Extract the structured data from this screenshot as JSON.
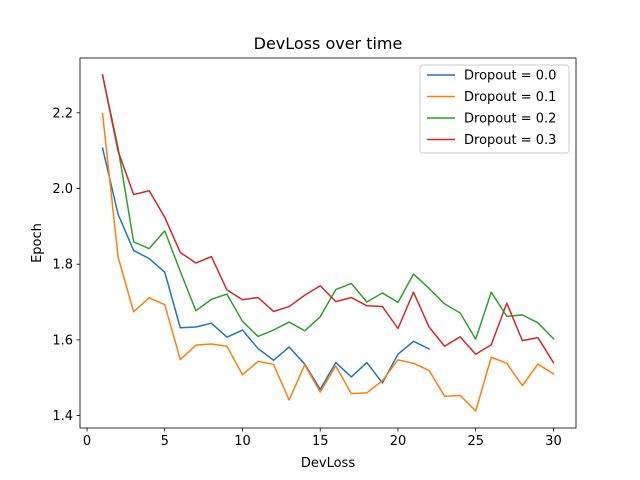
{
  "chart_data": {
    "type": "line",
    "title": "DevLoss over time",
    "xlabel": "DevLoss",
    "ylabel": "Epoch",
    "xlim": [
      -0.45,
      31.45
    ],
    "ylim": [
      1.367,
      2.345
    ],
    "xticks": [
      0,
      5,
      10,
      15,
      20,
      25,
      30
    ],
    "yticks": [
      1.4,
      1.6,
      1.8,
      2.0,
      2.2
    ],
    "xtick_labels": [
      "0",
      "5",
      "10",
      "15",
      "20",
      "25",
      "30"
    ],
    "ytick_labels": [
      "1.4",
      "1.6",
      "1.8",
      "2.0",
      "2.2"
    ],
    "grid": false,
    "legend_position": "top-right",
    "series": [
      {
        "name": "Dropout = 0.0",
        "color": "#1f77b4",
        "x": [
          1,
          2,
          3,
          4,
          5,
          6,
          7,
          8,
          9,
          10,
          11,
          12,
          13,
          14,
          15,
          16,
          17,
          18,
          19,
          20,
          21,
          22
        ],
        "y": [
          2.107,
          1.932,
          1.836,
          1.815,
          1.779,
          1.632,
          1.634,
          1.644,
          1.607,
          1.626,
          1.577,
          1.546,
          1.581,
          1.536,
          1.469,
          1.54,
          1.502,
          1.54,
          1.486,
          1.562,
          1.596,
          1.576
        ]
      },
      {
        "name": "Dropout = 0.1",
        "color": "#ff7f0e",
        "x": [
          1,
          2,
          3,
          4,
          5,
          6,
          7,
          8,
          9,
          10,
          11,
          12,
          13,
          14,
          15,
          16,
          17,
          18,
          19,
          20,
          21,
          22,
          23,
          24,
          25,
          26,
          27,
          28,
          29,
          30
        ],
        "y": [
          2.198,
          1.819,
          1.674,
          1.711,
          1.693,
          1.548,
          1.586,
          1.589,
          1.583,
          1.508,
          1.543,
          1.535,
          1.441,
          1.534,
          1.462,
          1.531,
          1.458,
          1.46,
          1.492,
          1.547,
          1.538,
          1.519,
          1.451,
          1.453,
          1.412,
          1.554,
          1.538,
          1.479,
          1.536,
          1.51
        ]
      },
      {
        "name": "Dropout = 0.2",
        "color": "#2ca02c",
        "x": [
          1,
          2,
          3,
          4,
          5,
          6,
          7,
          8,
          9,
          10,
          11,
          12,
          13,
          14,
          15,
          16,
          17,
          18,
          19,
          20,
          21,
          22,
          23,
          24,
          25,
          26,
          27,
          28,
          29,
          30
        ],
        "y": [
          2.3,
          2.107,
          1.859,
          1.841,
          1.888,
          1.781,
          1.677,
          1.707,
          1.721,
          1.649,
          1.609,
          1.626,
          1.647,
          1.624,
          1.661,
          1.733,
          1.749,
          1.7,
          1.724,
          1.699,
          1.774,
          1.736,
          1.695,
          1.671,
          1.602,
          1.726,
          1.662,
          1.666,
          1.645,
          1.603
        ]
      },
      {
        "name": "Dropout = 0.3",
        "color": "#d62728",
        "x": [
          1,
          2,
          3,
          4,
          5,
          6,
          7,
          8,
          9,
          10,
          11,
          12,
          13,
          14,
          15,
          16,
          17,
          18,
          19,
          20,
          21,
          22,
          23,
          24,
          25,
          26,
          27,
          28,
          29,
          30
        ],
        "y": [
          2.3,
          2.099,
          1.984,
          1.994,
          1.924,
          1.831,
          1.803,
          1.82,
          1.732,
          1.706,
          1.712,
          1.675,
          1.688,
          1.718,
          1.743,
          1.701,
          1.712,
          1.69,
          1.688,
          1.63,
          1.726,
          1.634,
          1.583,
          1.608,
          1.562,
          1.587,
          1.697,
          1.598,
          1.606,
          1.54
        ]
      }
    ]
  }
}
